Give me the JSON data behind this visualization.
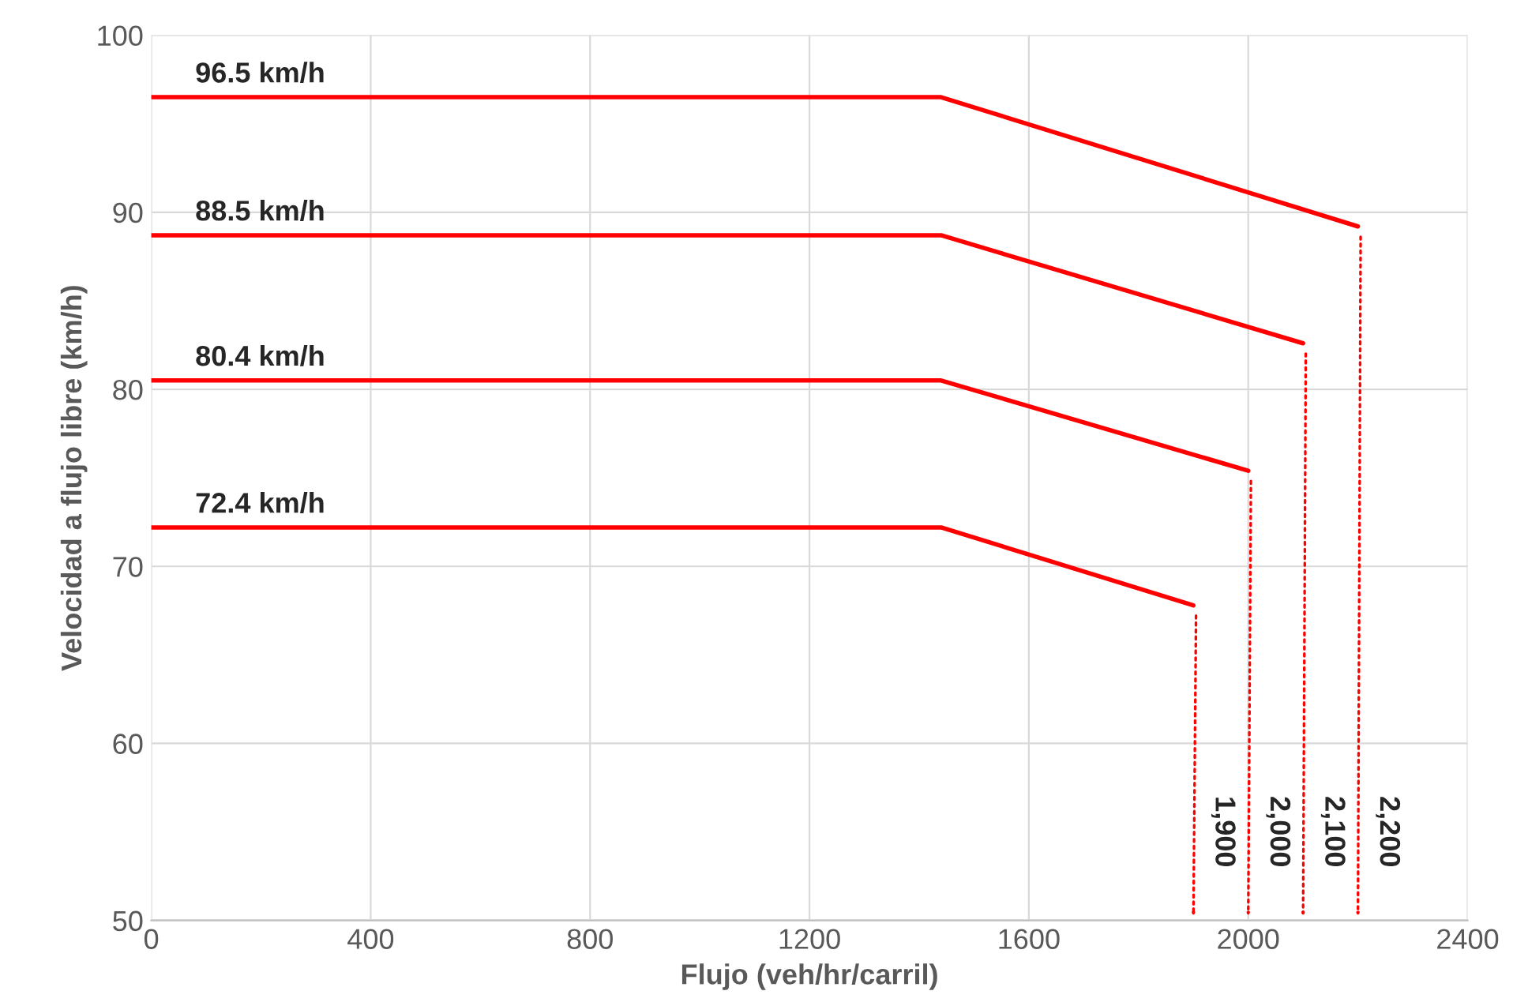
{
  "chart_data": {
    "type": "line",
    "xlabel": "Flujo (veh/hr/carril)",
    "ylabel": "Velocidad a flujo libre (km/h)",
    "xlim": [
      0,
      2400
    ],
    "xticks": [
      0,
      400,
      800,
      1200,
      1600,
      2000,
      2400
    ],
    "ylim": [
      50,
      100
    ],
    "yticks": [
      50,
      60,
      70,
      80,
      90,
      100
    ],
    "grid": true,
    "legend": false,
    "line_style": "solid",
    "marker": "none",
    "series": [
      {
        "name": "96.5 km/h",
        "color": "#ff0000",
        "x": [
          0,
          1440,
          2200
        ],
        "values": [
          96.5,
          96.5,
          89.2
        ]
      },
      {
        "name": "88.5 km/h",
        "color": "#ff0000",
        "x": [
          0,
          1440,
          2100
        ],
        "values": [
          88.7,
          88.7,
          82.6
        ]
      },
      {
        "name": "80.4 km/h",
        "color": "#ff0000",
        "x": [
          0,
          1440,
          2000
        ],
        "values": [
          80.5,
          80.5,
          75.4
        ]
      },
      {
        "name": "72.4 km/h",
        "color": "#ff0000",
        "x": [
          0,
          1440,
          1900
        ],
        "values": [
          72.2,
          72.2,
          67.8
        ]
      }
    ],
    "annotations": [
      "2,200",
      "2,100",
      "2,000",
      "1,900"
    ]
  }
}
